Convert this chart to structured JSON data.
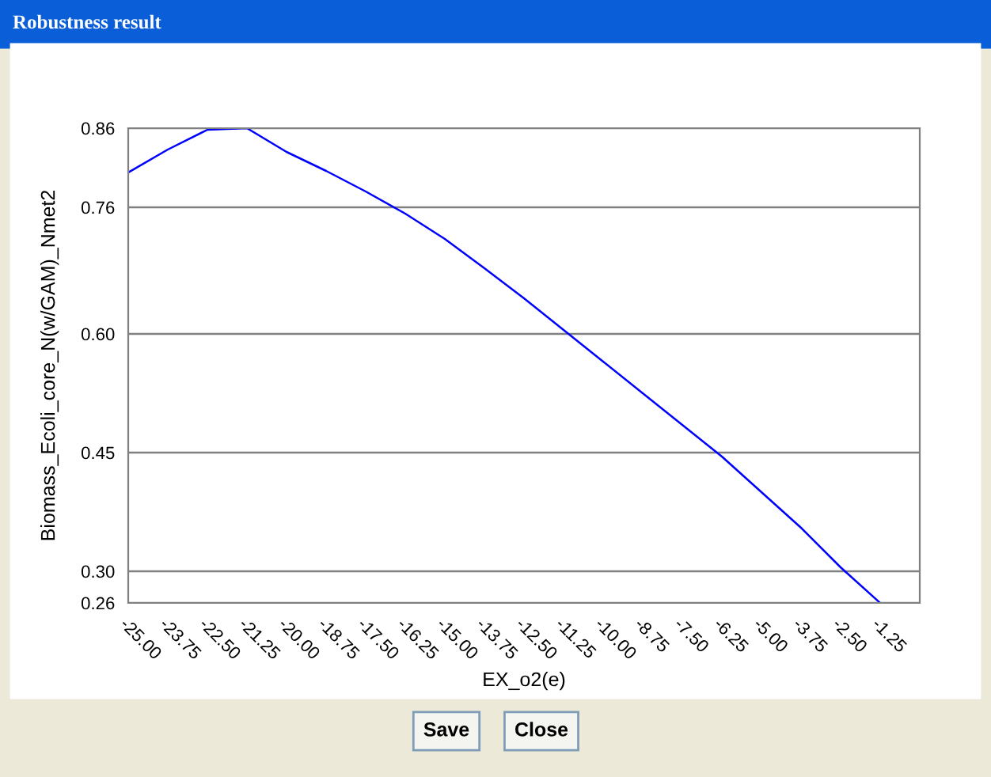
{
  "chart_data": {
    "type": "line",
    "title": "Robustness result",
    "xlabel": "EX_o2(e)",
    "ylabel": "Biomass_Ecoli_core_N(w/GAM)_Nmet2",
    "x": [
      -25,
      -23.75,
      -22.5,
      -21.25,
      -20,
      -18.75,
      -17.5,
      -16.25,
      -15,
      -13.75,
      -12.5,
      -11.25,
      -10,
      -8.75,
      -7.5,
      -6.25,
      -5,
      -3.75,
      -2.5,
      -1.25
    ],
    "series": [
      {
        "color": "#0000ff",
        "values": [
          0.804,
          0.833,
          0.858,
          0.86,
          0.83,
          0.806,
          0.78,
          0.752,
          0.72,
          0.683,
          0.645,
          0.605,
          0.565,
          0.525,
          0.485,
          0.445,
          0.4,
          0.355,
          0.305,
          0.26
        ]
      }
    ],
    "xlim": [
      -25,
      0
    ],
    "ylim": [
      0.26,
      0.86
    ],
    "xticks": [
      {
        "value": -25,
        "label": "-25.00"
      },
      {
        "value": -23.75,
        "label": "-23.75"
      },
      {
        "value": -22.5,
        "label": "-22.50"
      },
      {
        "value": -21.25,
        "label": "-21.25"
      },
      {
        "value": -20,
        "label": "-20.00"
      },
      {
        "value": -18.75,
        "label": "-18.75"
      },
      {
        "value": -17.5,
        "label": "-17.50"
      },
      {
        "value": -16.25,
        "label": "-16.25"
      },
      {
        "value": -15,
        "label": "-15.00"
      },
      {
        "value": -13.75,
        "label": "-13.75"
      },
      {
        "value": -12.5,
        "label": "-12.50"
      },
      {
        "value": -11.25,
        "label": "-11.25"
      },
      {
        "value": -10,
        "label": "-10.00"
      },
      {
        "value": -8.75,
        "label": "-8.75"
      },
      {
        "value": -7.5,
        "label": "-7.50"
      },
      {
        "value": -6.25,
        "label": "-6.25"
      },
      {
        "value": -5,
        "label": "-5.00"
      },
      {
        "value": -3.75,
        "label": "-3.75"
      },
      {
        "value": -2.5,
        "label": "-2.50"
      },
      {
        "value": -1.25,
        "label": "-1.25"
      }
    ],
    "yticks": [
      0.26,
      {
        "value": 0.3,
        "label": "0.30"
      },
      0.45,
      {
        "value": 0.6,
        "label": "0.60"
      },
      0.76,
      0.86
    ],
    "grid": "y",
    "marker": "none",
    "line_style": "solid",
    "annotations": [
      "Save",
      "Close"
    ]
  }
}
